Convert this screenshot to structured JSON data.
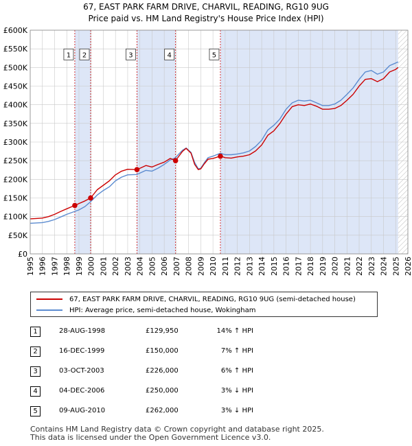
{
  "header": {
    "title_line1": "67, EAST PARK FARM DRIVE, CHARVIL, READING, RG10 9UG",
    "title_line2": "Price paid vs. HM Land Registry's House Price Index (HPI)"
  },
  "colors": {
    "price_line": "#cc0000",
    "hpi_line": "#5b8bd0",
    "shade": "#dde6f7",
    "marker_dash": "#cc0000",
    "grid": "#c8c8c8",
    "hatch": "#bbbbbb"
  },
  "chart_data": {
    "type": "line",
    "title": "Price paid vs. HM Land Registry's House Price Index (HPI)",
    "xlabel": "",
    "ylabel": "",
    "xlim": [
      1995.0,
      2026.0
    ],
    "ylim": [
      0,
      600000
    ],
    "y_ticks": [
      0,
      50000,
      100000,
      150000,
      200000,
      250000,
      300000,
      350000,
      400000,
      450000,
      500000,
      550000,
      600000
    ],
    "y_tick_labels": [
      "£0",
      "£50K",
      "£100K",
      "£150K",
      "£200K",
      "£250K",
      "£300K",
      "£350K",
      "£400K",
      "£450K",
      "£500K",
      "£550K",
      "£600K"
    ],
    "x_ticks": [
      1995,
      1996,
      1997,
      1998,
      1999,
      2000,
      2001,
      2002,
      2003,
      2004,
      2005,
      2006,
      2007,
      2008,
      2009,
      2010,
      2011,
      2012,
      2013,
      2014,
      2015,
      2016,
      2017,
      2018,
      2019,
      2020,
      2021,
      2022,
      2023,
      2024,
      2025,
      2026
    ],
    "x_tick_labels": [
      "1995",
      "1996",
      "1997",
      "1998",
      "1999",
      "2000",
      "2001",
      "2002",
      "2003",
      "2004",
      "2005",
      "2006",
      "2007",
      "2008",
      "2009",
      "2010",
      "2011",
      "2012",
      "2013",
      "2014",
      "2015",
      "2016",
      "2017",
      "2018",
      "2019",
      "2020",
      "2021",
      "2022",
      "2023",
      "2024",
      "2025",
      "2026"
    ],
    "grid": true,
    "shaded_ranges": [
      [
        1998.66,
        1999.96
      ],
      [
        2003.76,
        2006.93
      ],
      [
        2010.61,
        2025.2
      ]
    ],
    "hatch_start": 2025.2,
    "series": [
      {
        "name": "67, EAST PARK FARM DRIVE, CHARVIL, READING, RG10 9UG (semi-detached house)",
        "color": "#cc0000",
        "x": [
          1995.0,
          1995.5,
          1996.0,
          1996.5,
          1997.0,
          1997.5,
          1998.0,
          1998.66,
          1999.0,
          1999.5,
          1999.96,
          2000.5,
          2001.0,
          2001.5,
          2002.0,
          2002.5,
          2003.0,
          2003.76,
          2004.5,
          2005.0,
          2005.5,
          2006.0,
          2006.5,
          2006.93,
          2007.2,
          2007.5,
          2007.8,
          2008.2,
          2008.5,
          2008.8,
          2009.0,
          2009.3,
          2009.6,
          2010.0,
          2010.61,
          2011.0,
          2011.5,
          2012.0,
          2012.5,
          2013.0,
          2013.5,
          2014.0,
          2014.5,
          2015.0,
          2015.5,
          2016.0,
          2016.5,
          2017.0,
          2017.5,
          2018.0,
          2018.5,
          2019.0,
          2019.5,
          2020.0,
          2020.5,
          2021.0,
          2021.5,
          2022.0,
          2022.5,
          2023.0,
          2023.5,
          2024.0,
          2024.5,
          2025.0,
          2025.2
        ],
        "values": [
          94000,
          95000,
          96000,
          100000,
          106000,
          114000,
          121000,
          129950,
          135000,
          142000,
          150000,
          172000,
          184000,
          196000,
          212000,
          222000,
          227000,
          226000,
          237000,
          233000,
          240000,
          246000,
          256000,
          250000,
          262000,
          275000,
          283000,
          270000,
          240000,
          226000,
          228000,
          242000,
          254000,
          256000,
          262000,
          258000,
          257000,
          260000,
          262000,
          266000,
          276000,
          292000,
          318000,
          330000,
          350000,
          375000,
          395000,
          400000,
          398000,
          402000,
          396000,
          388000,
          388000,
          390000,
          398000,
          412000,
          428000,
          450000,
          468000,
          470000,
          462000,
          470000,
          488000,
          495000,
          500000
        ]
      },
      {
        "name": "HPI: Average price, semi-detached house, Wokingham",
        "color": "#5b8bd0",
        "x": [
          1995.0,
          1995.5,
          1996.0,
          1996.5,
          1997.0,
          1997.5,
          1998.0,
          1998.66,
          1999.0,
          1999.5,
          1999.96,
          2000.5,
          2001.0,
          2001.5,
          2002.0,
          2002.5,
          2003.0,
          2003.76,
          2004.5,
          2005.0,
          2005.5,
          2006.0,
          2006.5,
          2006.93,
          2007.2,
          2007.5,
          2007.8,
          2008.2,
          2008.5,
          2008.8,
          2009.0,
          2009.3,
          2009.6,
          2010.0,
          2010.61,
          2011.0,
          2011.5,
          2012.0,
          2012.5,
          2013.0,
          2013.5,
          2014.0,
          2014.5,
          2015.0,
          2015.5,
          2016.0,
          2016.5,
          2017.0,
          2017.5,
          2018.0,
          2018.5,
          2019.0,
          2019.5,
          2020.0,
          2020.5,
          2021.0,
          2021.5,
          2022.0,
          2022.5,
          2023.0,
          2023.5,
          2024.0,
          2024.5,
          2025.0,
          2025.2
        ],
        "values": [
          82000,
          83000,
          84000,
          87000,
          92000,
          99000,
          106000,
          114000,
          118000,
          127000,
          140000,
          158000,
          170000,
          180000,
          196000,
          206000,
          212000,
          213000,
          224000,
          222000,
          230000,
          240000,
          252000,
          258000,
          268000,
          278000,
          284000,
          272000,
          245000,
          228000,
          230000,
          245000,
          258000,
          262000,
          270000,
          266000,
          266000,
          268000,
          271000,
          276000,
          288000,
          305000,
          332000,
          345000,
          362000,
          388000,
          405000,
          412000,
          410000,
          412000,
          405000,
          398000,
          398000,
          402000,
          412000,
          428000,
          445000,
          468000,
          488000,
          492000,
          482000,
          488000,
          505000,
          512000,
          515000
        ]
      }
    ],
    "sales": [
      {
        "num": "1",
        "x": 1998.66,
        "price": 129950
      },
      {
        "num": "2",
        "x": 1999.96,
        "price": 150000
      },
      {
        "num": "3",
        "x": 2003.76,
        "price": 226000
      },
      {
        "num": "4",
        "x": 2006.93,
        "price": 250000
      },
      {
        "num": "5",
        "x": 2010.61,
        "price": 262000
      }
    ],
    "marker_label_value": 535000
  },
  "legend": {
    "price_label": "67, EAST PARK FARM DRIVE, CHARVIL, READING, RG10 9UG (semi-detached house)",
    "hpi_label": "HPI: Average price, semi-detached house, Wokingham"
  },
  "transactions": [
    {
      "num": "1",
      "date": "28-AUG-1998",
      "price": "£129,950",
      "hpi": "14% ↑ HPI"
    },
    {
      "num": "2",
      "date": "16-DEC-1999",
      "price": "£150,000",
      "hpi": "7% ↑ HPI"
    },
    {
      "num": "3",
      "date": "03-OCT-2003",
      "price": "£226,000",
      "hpi": "6% ↑ HPI"
    },
    {
      "num": "4",
      "date": "04-DEC-2006",
      "price": "£250,000",
      "hpi": "3% ↓ HPI"
    },
    {
      "num": "5",
      "date": "09-AUG-2010",
      "price": "£262,000",
      "hpi": "3% ↓ HPI"
    }
  ],
  "footer": {
    "line1": "Contains HM Land Registry data © Crown copyright and database right 2025.",
    "line2": "This data is licensed under the Open Government Licence v3.0."
  }
}
